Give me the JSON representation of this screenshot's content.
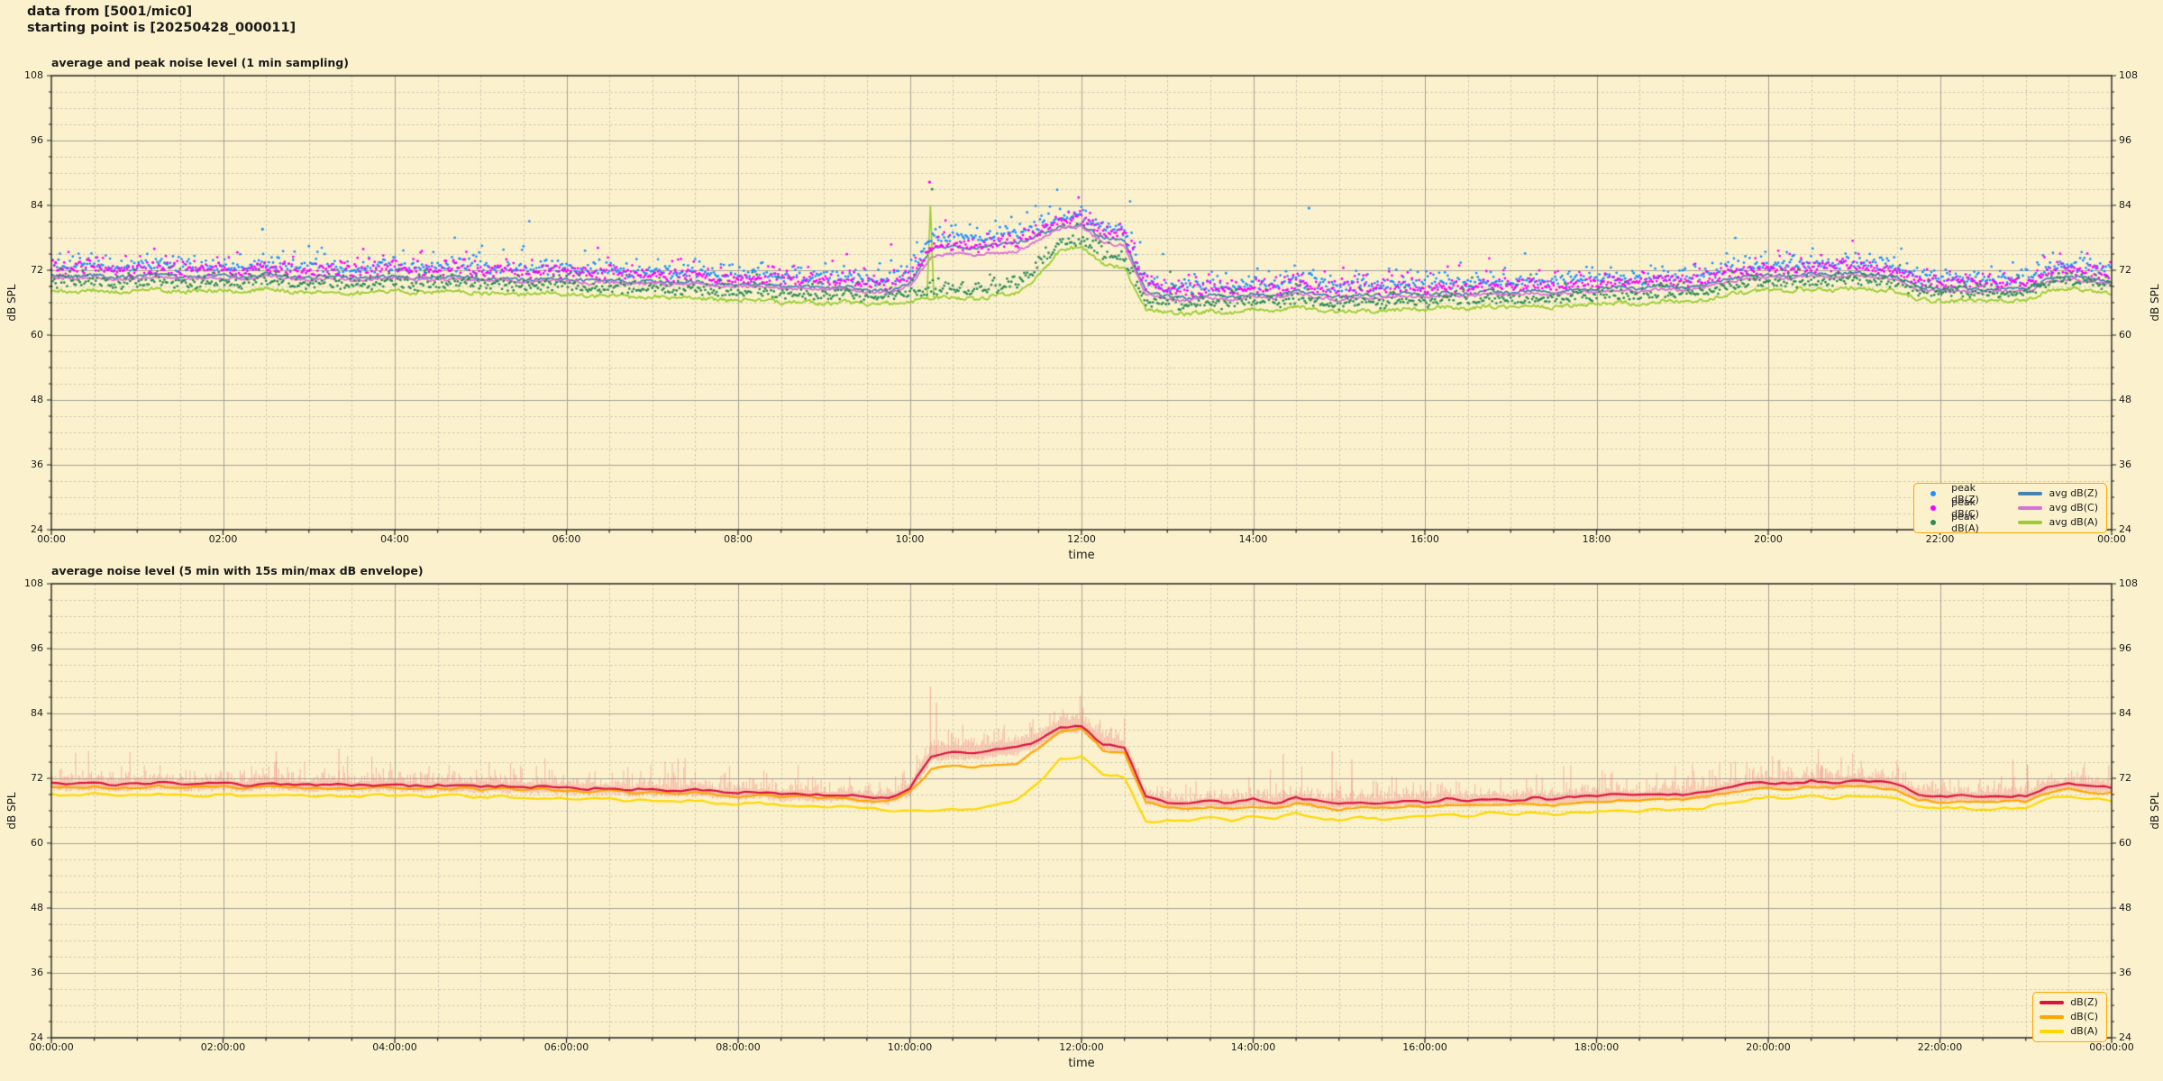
{
  "header": {
    "line1": "data from [5001/mic0]",
    "line2": "starting point is [20250428_000011]"
  },
  "colors": {
    "background": "#FBF2CD",
    "grid_major": "#A5A196",
    "grid_minor": "#CBC5B0",
    "axis": "#222222",
    "legend_border": "#FFA500",
    "text": "#1a1a1a"
  },
  "chart_data": [
    {
      "type": "line+scatter",
      "title": "average and peak noise level (1 min sampling)",
      "xlabel": "time",
      "ylabel": "dB SPL",
      "x_unit": "hours",
      "xlim": [
        0,
        24
      ],
      "ylim": [
        24,
        108
      ],
      "grid": {
        "major": "solid",
        "minor": "dashed",
        "x_minor_step_hours": 0.5,
        "y_minor_step_db": 3
      },
      "xticks": {
        "step_hours": 2,
        "labels": [
          "00:00",
          "02:00",
          "04:00",
          "06:00",
          "08:00",
          "10:00",
          "12:00",
          "14:00",
          "16:00",
          "18:00",
          "20:00",
          "22:00",
          "00:00"
        ]
      },
      "yticks": {
        "values": [
          24,
          36,
          48,
          60,
          72,
          84,
          96,
          108
        ],
        "labels": [
          "24",
          "36",
          "48",
          "60",
          "72",
          "84",
          "96",
          "108"
        ]
      },
      "legend_position": "lower right",
      "sample_step_hours": 0.25,
      "series": [
        {
          "name": "avg dB(Z)",
          "type": "line",
          "color": "#4682B4",
          "width": 1.8,
          "values": [
            71.0,
            70.8,
            71.2,
            70.6,
            70.9,
            71.3,
            70.7,
            70.9,
            71.1,
            70.6,
            71.4,
            70.8,
            70.6,
            70.9,
            70.5,
            70.8,
            71.0,
            70.5,
            70.7,
            70.9,
            70.4,
            70.6,
            70.2,
            70.5,
            70.3,
            70.0,
            70.2,
            69.8,
            70.0,
            69.6,
            69.9,
            69.4,
            69.2,
            69.5,
            68.9,
            69.1,
            68.7,
            69.0,
            68.4,
            68.2,
            69.5,
            76.0,
            76.5,
            76.2,
            76.8,
            77.0,
            78.6,
            80.0,
            80.3,
            78.0,
            77.4,
            68.0,
            67.2,
            66.8,
            67.5,
            67.0,
            67.8,
            67.2,
            68.3,
            67.4,
            67.0,
            67.6,
            67.2,
            67.8,
            67.4,
            68.0,
            67.6,
            68.2,
            67.8,
            68.3,
            67.9,
            68.4,
            68.6,
            68.9,
            68.5,
            69.1,
            68.8,
            69.3,
            70.2,
            70.8,
            71.2,
            70.9,
            71.5,
            71.1,
            71.6,
            71.2,
            70.8,
            68.8,
            68.5,
            68.7,
            68.4,
            68.6,
            68.5,
            70.3,
            70.9,
            70.5,
            69.8
          ]
        },
        {
          "name": "avg dB(C)",
          "type": "line",
          "color": "#DA70D6",
          "width": 1.8,
          "values": [
            70.6,
            70.4,
            70.8,
            70.2,
            70.5,
            70.9,
            70.3,
            70.5,
            70.7,
            70.2,
            71.0,
            70.4,
            70.2,
            70.5,
            70.1,
            70.4,
            70.6,
            70.1,
            70.3,
            70.5,
            70.0,
            70.2,
            69.8,
            70.1,
            69.9,
            69.6,
            69.8,
            69.4,
            69.6,
            69.2,
            69.5,
            69.0,
            68.8,
            69.1,
            68.5,
            68.7,
            68.3,
            68.6,
            68.0,
            67.8,
            69.1,
            74.5,
            75.0,
            74.7,
            75.3,
            75.5,
            77.6,
            79.7,
            80.0,
            77.2,
            76.6,
            67.5,
            66.7,
            66.3,
            67.0,
            66.5,
            67.3,
            66.7,
            67.8,
            66.9,
            66.5,
            67.1,
            66.7,
            67.3,
            66.9,
            67.5,
            67.1,
            67.7,
            67.3,
            67.8,
            67.4,
            67.9,
            68.1,
            68.4,
            68.0,
            68.6,
            68.3,
            68.8,
            69.7,
            70.3,
            70.7,
            70.4,
            71.0,
            70.6,
            71.1,
            70.7,
            70.3,
            68.3,
            68.0,
            68.2,
            67.9,
            68.1,
            68.0,
            69.8,
            70.4,
            70.0,
            69.3
          ]
        },
        {
          "name": "avg dB(A)",
          "type": "line",
          "color": "#9ACD32",
          "width": 1.8,
          "values": [
            68.2,
            68.0,
            68.4,
            67.9,
            68.1,
            68.5,
            67.9,
            68.2,
            68.4,
            67.9,
            68.6,
            68.1,
            67.9,
            68.2,
            67.8,
            68.1,
            68.3,
            67.8,
            68.0,
            68.2,
            67.7,
            67.9,
            67.5,
            67.8,
            67.6,
            67.2,
            67.4,
            67.0,
            67.2,
            66.8,
            67.0,
            66.5,
            66.3,
            66.6,
            66.0,
            66.2,
            65.8,
            66.1,
            65.6,
            65.9,
            66.2,
            66.8,
            67.0,
            66.6,
            67.3,
            67.8,
            71.0,
            75.8,
            76.3,
            73.0,
            72.4,
            64.8,
            64.2,
            63.9,
            64.6,
            64.1,
            64.9,
            64.3,
            65.4,
            64.5,
            64.1,
            64.7,
            64.3,
            64.9,
            64.6,
            65.2,
            64.8,
            65.4,
            65.0,
            65.5,
            65.1,
            65.6,
            65.8,
            66.1,
            65.7,
            66.3,
            66.0,
            66.5,
            67.4,
            68.0,
            68.4,
            68.1,
            68.7,
            68.3,
            68.8,
            68.4,
            68.0,
            66.6,
            66.3,
            66.5,
            66.2,
            66.4,
            66.3,
            68.1,
            68.7,
            68.3,
            67.8
          ]
        }
      ],
      "scatter": [
        {
          "name": "peak dB(Z)",
          "color": "#1E90FF",
          "follows": "avg dB(Z)",
          "offset_db": 1.3,
          "spread_db": 1.2
        },
        {
          "name": "peak dB(C)",
          "color": "#FF00FF",
          "follows": "avg dB(C)",
          "offset_db": 1.1,
          "spread_db": 1.2
        },
        {
          "name": "peak dB(A)",
          "color": "#2E8B57",
          "follows": "avg dB(A)",
          "offset_db": 1.0,
          "spread_db": 1.1
        }
      ],
      "legend": [
        {
          "label": "peak dB(Z)",
          "marker": "dot",
          "color": "#1E90FF"
        },
        {
          "label": "peak dB(C)",
          "marker": "dot",
          "color": "#FF00FF"
        },
        {
          "label": "peak dB(A)",
          "marker": "dot",
          "color": "#2E8B57"
        },
        {
          "label": "avg dB(Z)",
          "marker": "line",
          "color": "#4682B4"
        },
        {
          "label": "avg dB(C)",
          "marker": "line",
          "color": "#DA70D6"
        },
        {
          "label": "avg dB(A)",
          "marker": "line",
          "color": "#9ACD32"
        }
      ],
      "annotations": {
        "line_spikes": [
          {
            "series": "avg dB(A)",
            "hour": 10.24,
            "value": 84.0
          }
        ],
        "scatter_outliers": [
          {
            "series": "peak dB(C)",
            "hour": 10.23,
            "value": 88.3
          },
          {
            "series": "peak dB(A)",
            "hour": 10.26,
            "value": 87.0
          },
          {
            "series": "peak dB(Z)",
            "hour": 2.46,
            "value": 79.6
          },
          {
            "series": "peak dB(Z)",
            "hour": 14.65,
            "value": 83.5
          }
        ]
      }
    },
    {
      "type": "line+envelope",
      "title": "average noise level (5 min with 15s min/max dB envelope)",
      "xlabel": "time",
      "ylabel": "dB SPL",
      "x_unit": "hours",
      "xlim": [
        0,
        24
      ],
      "ylim": [
        24,
        108
      ],
      "grid": {
        "major": "solid",
        "minor": "dashed",
        "x_minor_step_hours": 0.5,
        "y_minor_step_db": 3
      },
      "xticks": {
        "step_hours": 2,
        "labels": [
          "00:00:00",
          "02:00:00",
          "04:00:00",
          "06:00:00",
          "08:00:00",
          "10:00:00",
          "12:00:00",
          "14:00:00",
          "16:00:00",
          "18:00:00",
          "20:00:00",
          "22:00:00",
          "00:00:00"
        ]
      },
      "yticks": {
        "values": [
          24,
          36,
          48,
          60,
          72,
          84,
          96,
          108
        ],
        "labels": [
          "24",
          "36",
          "48",
          "60",
          "72",
          "84",
          "96",
          "108"
        ]
      },
      "legend_position": "lower right",
      "sample_step_hours": 0.25,
      "series": [
        {
          "name": "dB(Z)",
          "type": "line",
          "color": "#DC143C",
          "width": 2.2,
          "values": [
            71.0,
            70.9,
            71.1,
            70.7,
            70.9,
            71.2,
            70.8,
            70.9,
            71.0,
            70.7,
            71.2,
            70.9,
            70.7,
            70.9,
            70.6,
            70.8,
            70.9,
            70.6,
            70.7,
            70.8,
            70.5,
            70.6,
            70.3,
            70.5,
            70.3,
            70.1,
            70.2,
            69.9,
            70.0,
            69.7,
            69.9,
            69.5,
            69.3,
            69.5,
            69.0,
            69.1,
            68.8,
            69.0,
            68.5,
            68.4,
            70.0,
            76.2,
            76.8,
            76.5,
            77.2,
            77.5,
            79.0,
            81.3,
            81.8,
            78.2,
            77.6,
            68.5,
            67.6,
            67.2,
            67.8,
            67.4,
            68.0,
            67.5,
            68.4,
            67.7,
            67.3,
            67.8,
            67.5,
            68.0,
            67.7,
            68.2,
            67.9,
            68.3,
            68.0,
            68.4,
            68.1,
            68.5,
            68.7,
            69.0,
            68.7,
            69.2,
            69.0,
            69.4,
            70.3,
            70.9,
            71.2,
            71.0,
            71.5,
            71.2,
            71.6,
            71.3,
            70.9,
            69.0,
            68.7,
            68.9,
            68.6,
            68.8,
            68.7,
            70.4,
            70.9,
            70.6,
            70.3
          ]
        },
        {
          "name": "dB(C)",
          "type": "line",
          "color": "#FFA500",
          "width": 2.2,
          "values": [
            70.4,
            70.3,
            70.5,
            70.1,
            70.3,
            70.6,
            70.2,
            70.3,
            70.4,
            70.1,
            70.6,
            70.3,
            70.1,
            70.3,
            70.0,
            70.2,
            70.3,
            70.0,
            70.1,
            70.2,
            69.9,
            70.0,
            69.7,
            69.9,
            69.7,
            69.5,
            69.6,
            69.3,
            69.4,
            69.1,
            69.3,
            68.9,
            68.7,
            68.9,
            68.4,
            68.5,
            68.2,
            68.4,
            67.9,
            67.8,
            69.4,
            73.6,
            74.2,
            73.9,
            74.6,
            74.9,
            77.5,
            80.8,
            81.3,
            77.2,
            76.6,
            67.5,
            66.6,
            66.2,
            66.8,
            66.4,
            67.0,
            66.5,
            67.4,
            66.7,
            66.3,
            66.8,
            66.5,
            67.0,
            66.7,
            67.2,
            66.9,
            67.3,
            67.0,
            67.4,
            67.1,
            67.5,
            67.7,
            68.0,
            67.7,
            68.2,
            68.0,
            68.4,
            69.3,
            69.9,
            70.2,
            70.0,
            70.5,
            70.2,
            70.6,
            70.3,
            69.9,
            68.0,
            67.7,
            67.9,
            67.6,
            67.8,
            67.7,
            69.4,
            69.9,
            69.6,
            69.3
          ]
        },
        {
          "name": "dB(A)",
          "type": "line",
          "color": "#FFD700",
          "width": 2.2,
          "values": [
            69.0,
            68.8,
            69.1,
            68.7,
            68.9,
            69.2,
            68.8,
            68.9,
            69.0,
            68.7,
            69.2,
            68.9,
            68.7,
            68.9,
            68.6,
            68.8,
            68.9,
            68.6,
            68.7,
            68.8,
            68.5,
            68.6,
            68.3,
            68.5,
            68.3,
            68.1,
            68.2,
            67.9,
            68.0,
            67.7,
            67.9,
            67.5,
            67.3,
            67.5,
            67.0,
            67.1,
            66.8,
            67.0,
            66.5,
            66.2,
            65.8,
            66.0,
            66.3,
            66.1,
            66.8,
            67.9,
            71.2,
            75.5,
            75.9,
            72.8,
            72.2,
            63.8,
            64.3,
            64.0,
            64.7,
            64.2,
            65.0,
            64.4,
            65.5,
            64.6,
            64.2,
            64.8,
            64.4,
            65.0,
            64.7,
            65.3,
            64.9,
            65.5,
            65.1,
            65.6,
            65.2,
            65.7,
            65.9,
            66.2,
            65.8,
            66.4,
            66.1,
            66.6,
            67.5,
            68.1,
            68.5,
            68.2,
            68.8,
            68.4,
            68.9,
            68.5,
            68.1,
            66.7,
            66.4,
            66.6,
            66.3,
            66.5,
            66.4,
            68.2,
            68.8,
            68.4,
            67.9
          ]
        }
      ],
      "envelope": {
        "around": "dB(Z)",
        "color": "#F08080",
        "alpha": 0.5,
        "up_base_db": 0.5,
        "up_spread_db": 1.1,
        "max_up_db": 6.0,
        "down_base_db": 0.7,
        "down_spread_db": 0.7,
        "bump_boost_db": 0.7,
        "bump_hours": [
          10.1,
          12.4
        ],
        "spikes": [
          {
            "hour": 10.24,
            "value": 89.0
          },
          {
            "hour": 10.31,
            "value": 86.0
          },
          {
            "hour": 2.62,
            "value": 77.0
          },
          {
            "hour": 3.35,
            "value": 77.5
          },
          {
            "hour": 14.35,
            "value": 76.5
          },
          {
            "hour": 14.92,
            "value": 77.0
          },
          {
            "hour": 15.15,
            "value": 75.5
          },
          {
            "hour": 20.62,
            "value": 74.5
          },
          {
            "hour": 22.85,
            "value": 75.5
          },
          {
            "hour": 23.02,
            "value": 74.5
          }
        ]
      },
      "legend": [
        {
          "label": "dB(Z)",
          "marker": "line",
          "color": "#DC143C"
        },
        {
          "label": "dB(C)",
          "marker": "line",
          "color": "#FFA500"
        },
        {
          "label": "dB(A)",
          "marker": "line",
          "color": "#FFD700"
        }
      ]
    }
  ]
}
